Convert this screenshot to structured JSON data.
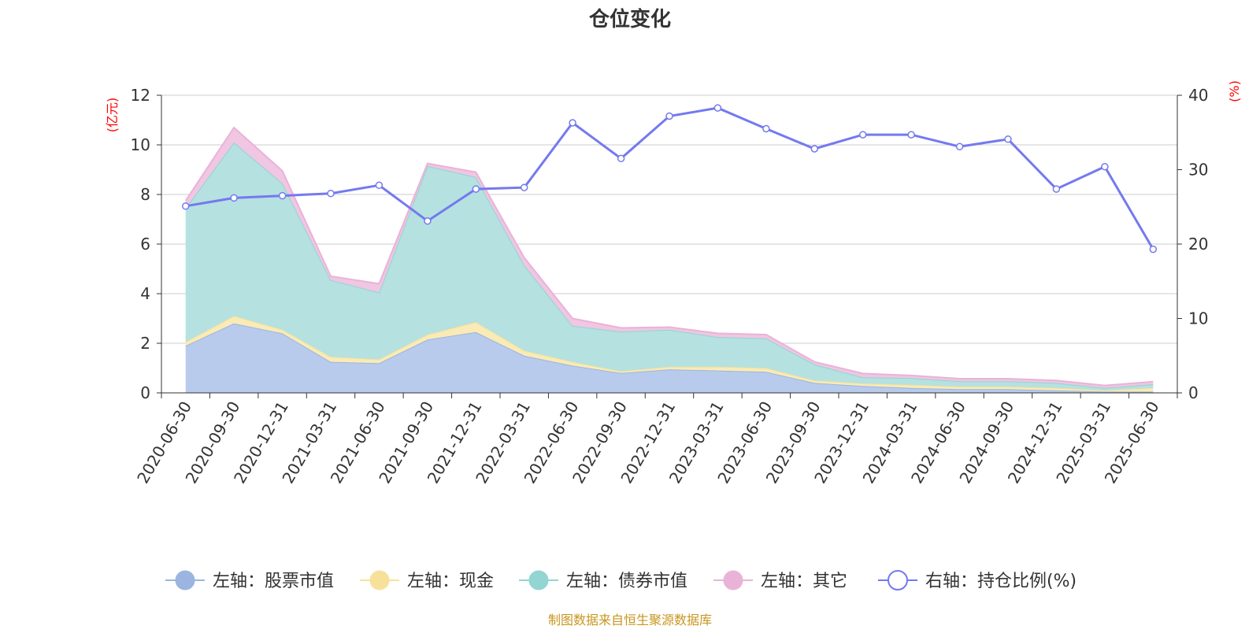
{
  "chart_data": {
    "type": "area",
    "title": "仓位变化",
    "left_unit": "(亿元)",
    "right_unit": "(%)",
    "footer": "制图数据来自恒生聚源数据库",
    "categories": [
      "2020-06-30",
      "2020-09-30",
      "2020-12-31",
      "2021-03-31",
      "2021-06-30",
      "2021-09-30",
      "2021-12-31",
      "2022-03-31",
      "2022-06-30",
      "2022-09-30",
      "2022-12-31",
      "2023-03-31",
      "2023-06-30",
      "2023-09-30",
      "2023-12-31",
      "2024-03-31",
      "2024-06-30",
      "2024-09-30",
      "2024-12-31",
      "2025-03-31",
      "2025-06-30"
    ],
    "y_left": {
      "min": 0,
      "max": 12,
      "ticks": [
        "0",
        "2",
        "4",
        "6",
        "8",
        "10",
        "12"
      ]
    },
    "y_right": {
      "min": 0,
      "max": 40,
      "ticks": [
        "0",
        "10",
        "20",
        "30",
        "40"
      ]
    },
    "grid": true,
    "legend_position": "bottom",
    "series": [
      {
        "name": "左轴：股票市值",
        "axis": "left",
        "kind": "stacked-area",
        "color": "#9bb5e0",
        "fill": "#b8cbec",
        "values": [
          1.9,
          2.8,
          2.4,
          1.25,
          1.2,
          2.15,
          2.45,
          1.5,
          1.1,
          0.8,
          0.95,
          0.9,
          0.85,
          0.4,
          0.28,
          0.2,
          0.15,
          0.15,
          0.1,
          0.05,
          0.05
        ]
      },
      {
        "name": "左轴：现金",
        "axis": "left",
        "kind": "stacked-area",
        "color": "#f7e19a",
        "fill": "#faeab5",
        "values": [
          0.15,
          0.3,
          0.15,
          0.2,
          0.15,
          0.2,
          0.4,
          0.2,
          0.15,
          0.07,
          0.1,
          0.15,
          0.15,
          0.1,
          0.1,
          0.12,
          0.1,
          0.1,
          0.1,
          0.05,
          0.15
        ]
      },
      {
        "name": "左轴：债券市值",
        "axis": "left",
        "kind": "stacked-area",
        "color": "#92d5d3",
        "fill": "#b5e1e0",
        "values": [
          5.4,
          7.0,
          5.9,
          3.1,
          2.7,
          6.8,
          5.85,
          3.45,
          1.45,
          1.6,
          1.5,
          1.2,
          1.2,
          0.65,
          0.25,
          0.28,
          0.22,
          0.22,
          0.2,
          0.1,
          0.15
        ]
      },
      {
        "name": "左轴：其它",
        "axis": "left",
        "kind": "stacked-area",
        "color": "#e9b3d7",
        "fill": "#f0c6e2",
        "values": [
          0.3,
          0.6,
          0.5,
          0.15,
          0.35,
          0.1,
          0.2,
          0.3,
          0.3,
          0.15,
          0.1,
          0.15,
          0.15,
          0.1,
          0.15,
          0.1,
          0.1,
          0.1,
          0.1,
          0.1,
          0.1
        ]
      },
      {
        "name": "右轴：持仓比例(%)",
        "axis": "right",
        "kind": "line",
        "color": "#7479ef",
        "values": [
          25.1,
          26.2,
          26.5,
          26.8,
          27.9,
          23.1,
          27.4,
          27.6,
          36.3,
          31.5,
          37.2,
          38.3,
          35.5,
          32.8,
          34.7,
          34.7,
          33.1,
          34.1,
          27.4,
          30.4,
          19.3
        ]
      }
    ]
  }
}
